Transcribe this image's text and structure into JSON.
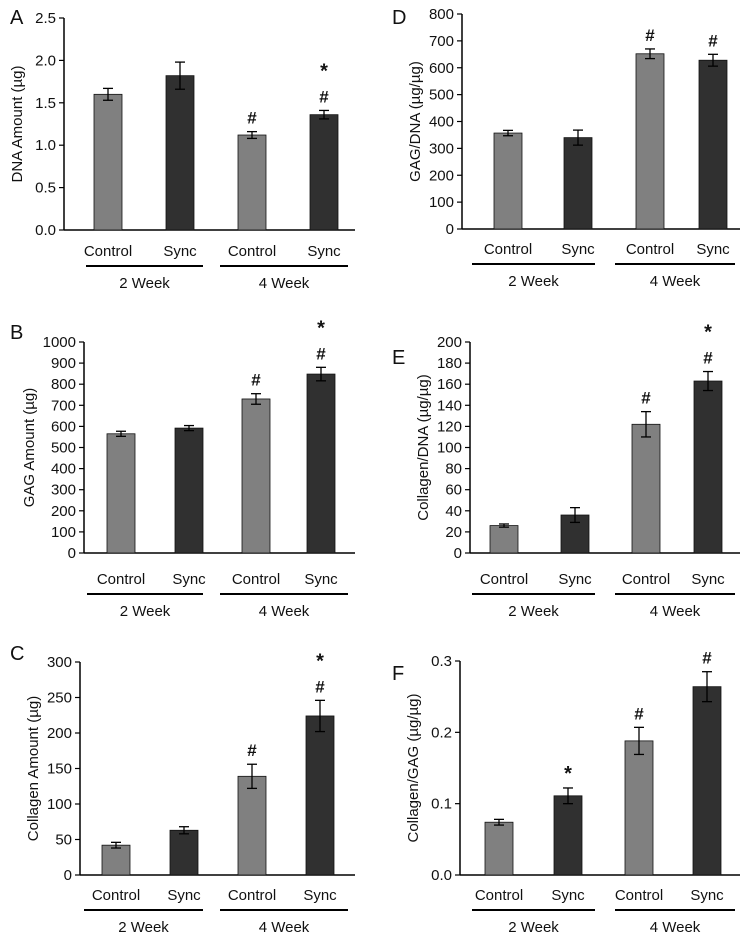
{
  "chart_data": [
    {
      "type": "bar",
      "panel": "A",
      "ylabel": "DNA Amount (µg)",
      "ylim": [
        0,
        2.5
      ],
      "yticks": [
        "0.0",
        "0.5",
        "1.0",
        "1.5",
        "2.0",
        "2.5"
      ],
      "categories": [
        "Control",
        "Sync",
        "Control",
        "Sync"
      ],
      "groups": [
        "2 Week",
        "4 Week"
      ],
      "values": [
        1.6,
        1.82,
        1.12,
        1.36
      ],
      "errors": [
        0.07,
        0.16,
        0.04,
        0.05
      ],
      "bar_colors": [
        "#808080",
        "#303030",
        "#808080",
        "#303030"
      ],
      "annotations": [
        [],
        [],
        [
          "#"
        ],
        [
          "#",
          "*"
        ]
      ]
    },
    {
      "type": "bar",
      "panel": "B",
      "ylabel": "GAG Amount (µg)",
      "ylim": [
        0,
        1000
      ],
      "yticks": [
        "0",
        "100",
        "200",
        "300",
        "400",
        "500",
        "600",
        "700",
        "800",
        "900",
        "1000"
      ],
      "categories": [
        "Control",
        "Sync",
        "Control",
        "Sync"
      ],
      "groups": [
        "2 Week",
        "4 Week"
      ],
      "values": [
        565,
        592,
        730,
        848
      ],
      "errors": [
        12,
        12,
        25,
        32
      ],
      "bar_colors": [
        "#808080",
        "#303030",
        "#808080",
        "#303030"
      ],
      "annotations": [
        [],
        [],
        [
          "#"
        ],
        [
          "#",
          "*"
        ]
      ]
    },
    {
      "type": "bar",
      "panel": "C",
      "ylabel": "Collagen Amount (µg)",
      "ylim": [
        0,
        300
      ],
      "yticks": [
        "0",
        "50",
        "100",
        "150",
        "200",
        "250",
        "300"
      ],
      "categories": [
        "Control",
        "Sync",
        "Control",
        "Sync"
      ],
      "groups": [
        "2 Week",
        "4 Week"
      ],
      "values": [
        42,
        63,
        139,
        224
      ],
      "errors": [
        4,
        5,
        17,
        22
      ],
      "bar_colors": [
        "#808080",
        "#303030",
        "#808080",
        "#303030"
      ],
      "annotations": [
        [],
        [],
        [
          "#"
        ],
        [
          "#",
          "*"
        ]
      ]
    },
    {
      "type": "bar",
      "panel": "D",
      "ylabel": "GAG/DNA (µg/µg)",
      "ylim": [
        0,
        800
      ],
      "yticks": [
        "0",
        "100",
        "200",
        "300",
        "400",
        "500",
        "600",
        "700",
        "800"
      ],
      "categories": [
        "Control",
        "Sync",
        "Control",
        "Sync"
      ],
      "groups": [
        "2 Week",
        "4 Week"
      ],
      "values": [
        357,
        340,
        652,
        628
      ],
      "errors": [
        10,
        28,
        18,
        22
      ],
      "bar_colors": [
        "#808080",
        "#303030",
        "#808080",
        "#303030"
      ],
      "annotations": [
        [],
        [],
        [
          "#"
        ],
        [
          "#"
        ]
      ]
    },
    {
      "type": "bar",
      "panel": "E",
      "ylabel": "Collagen/DNA (µg/µg)",
      "ylim": [
        0,
        200
      ],
      "yticks": [
        "0",
        "20",
        "40",
        "60",
        "80",
        "100",
        "120",
        "140",
        "160",
        "180",
        "200"
      ],
      "categories": [
        "Control",
        "Sync",
        "Control",
        "Sync"
      ],
      "groups": [
        "2 Week",
        "4 Week"
      ],
      "values": [
        26,
        36,
        122,
        163
      ],
      "errors": [
        1.5,
        7,
        12,
        9
      ],
      "bar_colors": [
        "#808080",
        "#303030",
        "#808080",
        "#303030"
      ],
      "annotations": [
        [],
        [],
        [
          "#"
        ],
        [
          "#",
          "*"
        ]
      ]
    },
    {
      "type": "bar",
      "panel": "F",
      "ylabel": "Collagen/GAG (µg/µg)",
      "ylim": [
        0,
        0.3
      ],
      "yticks": [
        "0.0",
        "0.1",
        "0.2",
        "0.3"
      ],
      "categories": [
        "Control",
        "Sync",
        "Control",
        "Sync"
      ],
      "groups": [
        "2 Week",
        "4 Week"
      ],
      "values": [
        0.074,
        0.111,
        0.188,
        0.264
      ],
      "errors": [
        0.004,
        0.011,
        0.019,
        0.021
      ],
      "bar_colors": [
        "#808080",
        "#303030",
        "#808080",
        "#303030"
      ],
      "annotations": [
        [],
        [
          "*"
        ],
        [
          "#"
        ],
        [
          "#"
        ]
      ]
    }
  ]
}
